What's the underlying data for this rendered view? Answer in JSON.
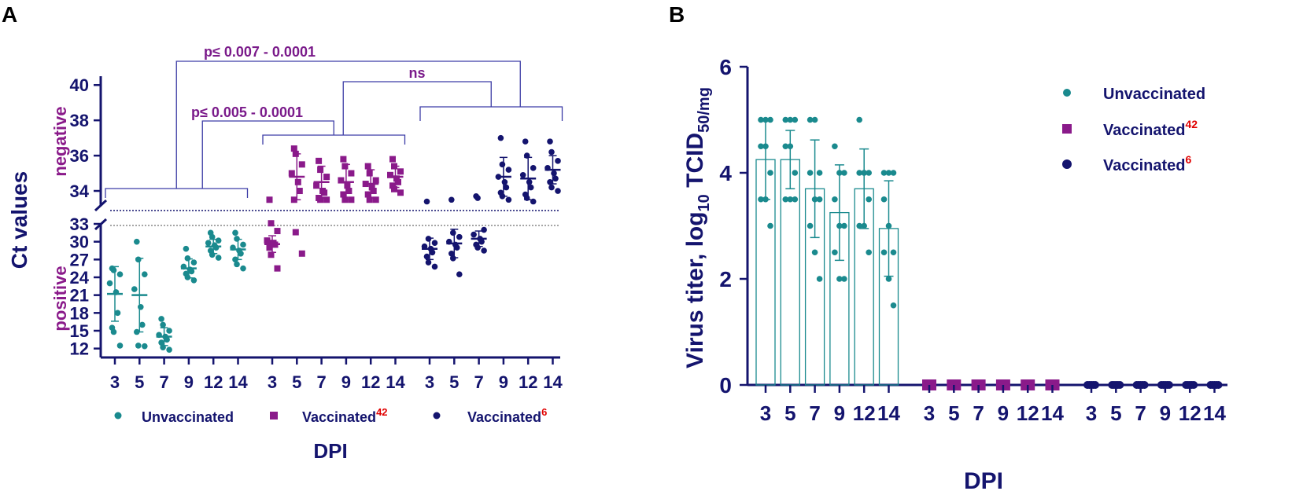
{
  "colors": {
    "unvaccinated": "#1a8a8e",
    "vaccinated42": "#8a1a8a",
    "vaccinated6": "#14146e",
    "axis": "#14146e",
    "bracket": "#3c3ca6",
    "sig_text": "#7a1a8a",
    "superscript": "#e00000"
  },
  "panels": {
    "a": {
      "label": "A",
      "ylabel": "Ct values",
      "region_negative": "negative",
      "region_positive": "positive",
      "xlabel": "DPI",
      "sig": [
        {
          "text": "p≤ 0.007 - 0.0001"
        },
        {
          "text": "p≤ 0.005 - 0.0001"
        },
        {
          "text": "ns"
        }
      ]
    },
    "b": {
      "label": "B",
      "ylabel_pre": "Virus titer, log",
      "ylabel_sub1": "10",
      "ylabel_mid": " TCID",
      "ylabel_sub2": "50/mg",
      "xlabel": "DPI"
    }
  },
  "legend": {
    "unvaccinated": "Unvaccinated",
    "vaccinated42_label": "Vaccinated",
    "vaccinated42_sup": "42",
    "vaccinated6_label": "Vaccinated",
    "vaccinated6_sup": "6"
  },
  "chart_data": [
    {
      "panel": "A",
      "type": "scatter",
      "title": "",
      "xlabel": "DPI",
      "ylabel": "Ct values",
      "y_upper_ticks": [
        34,
        36,
        38,
        40
      ],
      "y_lower_ticks": [
        12,
        15,
        18,
        21,
        24,
        27,
        30,
        33
      ],
      "y_upper_range": [
        33.2,
        40.5
      ],
      "y_lower_range": [
        10.5,
        33
      ],
      "categories": [
        "3",
        "5",
        "7",
        "9",
        "12",
        "14"
      ],
      "series": [
        {
          "name": "Unvaccinated",
          "marker": "circle",
          "means": [
            21.2,
            21.0,
            14.0,
            25.5,
            29.2,
            28.7
          ],
          "sd": [
            4.6,
            6.2,
            1.5,
            1.6,
            1.2,
            1.7
          ],
          "points": [
            [
              25.5,
              25.2,
              24.5,
              23.0,
              21.5,
              18.0,
              15.5,
              14.8,
              12.5
            ],
            [
              30.0,
              27.0,
              24.5,
              22.0,
              19.0,
              16.0,
              14.8,
              12.5,
              12.4
            ],
            [
              17.0,
              16.0,
              15.0,
              14.3,
              14.0,
              13.5,
              13.0,
              12.2,
              11.8
            ],
            [
              28.8,
              27.2,
              26.5,
              25.8,
              25.3,
              25.0,
              24.6,
              24.0,
              23.5
            ],
            [
              31.5,
              30.8,
              30.2,
              29.8,
              29.4,
              29.0,
              28.5,
              27.8,
              27.3
            ],
            [
              31.5,
              30.5,
              29.5,
              29.0,
              28.5,
              28.0,
              27.0,
              26.2,
              25.5
            ]
          ]
        },
        {
          "name": "Vaccinated42",
          "marker": "square",
          "means": [
            29.6,
            34.8,
            34.5,
            34.5,
            34.4,
            34.8
          ],
          "sd": [
            1.4,
            1.3,
            0.9,
            1.0,
            0.8,
            0.6
          ],
          "points": [
            [
              33.5,
              33.1,
              31.8,
              30.2,
              29.8,
              29.5,
              29.0,
              27.8,
              25.5
            ],
            [
              36.4,
              36.1,
              35.5,
              35.0,
              34.5,
              34.0,
              33.5,
              31.6,
              28.0
            ],
            [
              35.7,
              35.2,
              34.8,
              34.3,
              34.0,
              33.9,
              33.6,
              33.5,
              33.5
            ],
            [
              35.8,
              35.4,
              35.0,
              34.6,
              34.3,
              34.0,
              33.8,
              33.5,
              33.5
            ],
            [
              35.4,
              35.0,
              34.6,
              34.4,
              34.2,
              34.0,
              33.8,
              33.5,
              33.5
            ],
            [
              35.8,
              35.4,
              35.1,
              34.9,
              34.7,
              34.5,
              34.3,
              34.1,
              33.9
            ]
          ]
        },
        {
          "name": "Vaccinated6",
          "marker": "circle",
          "means": [
            28.8,
            29.7,
            30.5,
            34.8,
            34.7,
            35.2
          ],
          "sd": [
            1.8,
            2.4,
            1.3,
            1.1,
            1.2,
            0.8
          ],
          "points": [
            [
              33.4,
              30.5,
              29.8,
              29.2,
              28.8,
              28.2,
              27.5,
              26.5,
              25.8
            ],
            [
              33.5,
              31.5,
              30.8,
              30.0,
              29.5,
              29.0,
              28.0,
              27.2,
              24.5
            ],
            [
              33.7,
              33.6,
              32.0,
              31.2,
              30.5,
              30.0,
              29.5,
              29.0,
              28.5
            ],
            [
              37.0,
              35.5,
              35.2,
              34.8,
              34.5,
              34.2,
              33.9,
              33.7,
              33.5
            ],
            [
              36.8,
              36.0,
              35.3,
              34.9,
              34.5,
              34.2,
              33.8,
              33.6,
              33.4
            ],
            [
              36.8,
              36.2,
              35.7,
              35.3,
              35.0,
              34.7,
              34.5,
              34.2,
              34.0
            ]
          ]
        }
      ],
      "annotations": [
        {
          "text": "p≤ 0.007 - 0.0001",
          "between": [
            "Unvaccinated",
            "Vaccinated6"
          ]
        },
        {
          "text": "p≤ 0.005 - 0.0001",
          "between": [
            "Unvaccinated",
            "Vaccinated42"
          ]
        },
        {
          "text": "ns",
          "between": [
            "Vaccinated42",
            "Vaccinated6"
          ]
        }
      ],
      "legend": [
        "Unvaccinated",
        "Vaccinated42",
        "Vaccinated6"
      ]
    },
    {
      "panel": "B",
      "type": "bar",
      "title": "",
      "xlabel": "DPI",
      "ylabel": "Virus titer, log10 TCID50/mg",
      "ylim": [
        0,
        6
      ],
      "yticks": [
        0,
        2,
        4,
        6
      ],
      "categories": [
        "3",
        "5",
        "7",
        "9",
        "12",
        "14"
      ],
      "series": [
        {
          "name": "Unvaccinated",
          "marker": "circle",
          "values": [
            4.25,
            4.25,
            3.7,
            3.25,
            3.7,
            2.95
          ],
          "sd": [
            0.75,
            0.55,
            0.92,
            0.9,
            0.75,
            0.9
          ],
          "points": [
            [
              5.0,
              5.0,
              5.0,
              4.5,
              4.5,
              4.0,
              3.5,
              3.5,
              3.0
            ],
            [
              5.0,
              5.0,
              5.0,
              4.5,
              4.5,
              4.0,
              3.5,
              3.5,
              3.5
            ],
            [
              5.0,
              5.0,
              4.0,
              4.0,
              3.5,
              3.5,
              3.0,
              2.5,
              2.0
            ],
            [
              4.5,
              4.0,
              4.0,
              3.5,
              3.0,
              3.0,
              2.5,
              2.0,
              2.0
            ],
            [
              5.0,
              4.0,
              4.0,
              4.0,
              4.0,
              3.5,
              3.0,
              3.0,
              2.5
            ],
            [
              4.0,
              4.0,
              4.0,
              3.5,
              3.0,
              2.5,
              2.5,
              2.0,
              1.5
            ]
          ]
        },
        {
          "name": "Vaccinated42",
          "marker": "square",
          "values": [
            0,
            0,
            0,
            0,
            0,
            0
          ],
          "sd": [
            0,
            0,
            0,
            0,
            0,
            0
          ]
        },
        {
          "name": "Vaccinated6",
          "marker": "circle",
          "values": [
            0,
            0,
            0,
            0,
            0,
            0
          ],
          "sd": [
            0,
            0,
            0,
            0,
            0,
            0
          ]
        }
      ],
      "legend": [
        "Unvaccinated",
        "Vaccinated42",
        "Vaccinated6"
      ]
    }
  ]
}
